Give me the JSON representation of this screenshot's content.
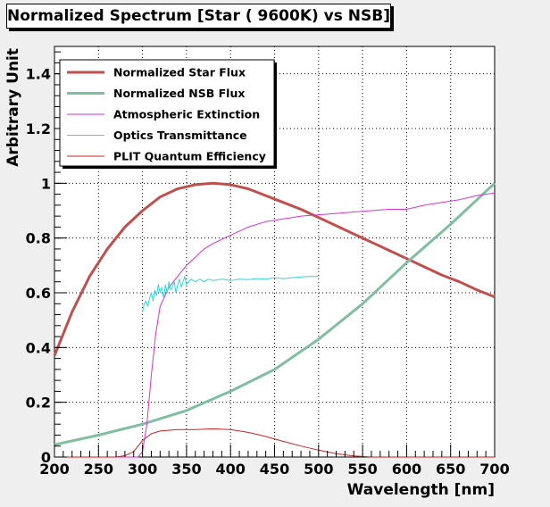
{
  "chart_data": {
    "type": "line",
    "title": "Normalized Spectrum [Star ( 9600K) vs NSB]",
    "xlabel": "Wavelength [nm]",
    "ylabel": "Arbitrary Unit",
    "xlim": [
      200,
      700
    ],
    "ylim": [
      0,
      1.5
    ],
    "x_ticks": [
      "200",
      "250",
      "300",
      "350",
      "400",
      "450",
      "500",
      "550",
      "600",
      "650",
      "700"
    ],
    "y_ticks": [
      "0",
      "0.2",
      "0.4",
      "0.6",
      "0.8",
      "1",
      "1.2",
      "1.4"
    ],
    "grid": true,
    "legend_position": "top-left",
    "series": [
      {
        "name": "Normalized Star Flux",
        "color": "#c0504d",
        "width": "thick",
        "x": [
          200,
          220,
          240,
          260,
          280,
          300,
          320,
          340,
          360,
          380,
          400,
          420,
          440,
          460,
          480,
          500,
          520,
          540,
          560,
          580,
          600,
          620,
          640,
          660,
          680,
          700
        ],
        "y": [
          0.37,
          0.53,
          0.66,
          0.76,
          0.84,
          0.9,
          0.95,
          0.98,
          0.995,
          1.0,
          0.995,
          0.98,
          0.955,
          0.93,
          0.905,
          0.875,
          0.845,
          0.815,
          0.785,
          0.755,
          0.725,
          0.695,
          0.665,
          0.64,
          0.61,
          0.585
        ]
      },
      {
        "name": "Normalized NSB Flux",
        "color": "#7fbf9f",
        "width": "thick",
        "x": [
          200,
          250,
          300,
          350,
          400,
          450,
          500,
          550,
          600,
          650,
          700
        ],
        "y": [
          0.045,
          0.08,
          0.12,
          0.17,
          0.24,
          0.32,
          0.43,
          0.56,
          0.71,
          0.85,
          1.0
        ]
      },
      {
        "name": "Atmospheric Extinction",
        "color": "#d633d6",
        "width": "thin",
        "x": [
          200,
          295,
          300,
          305,
          310,
          315,
          320,
          330,
          340,
          350,
          360,
          370,
          380,
          400,
          420,
          440,
          460,
          480,
          500,
          520,
          540,
          560,
          580,
          600,
          620,
          640,
          660,
          680,
          700
        ],
        "y": [
          0,
          0,
          0.02,
          0.12,
          0.3,
          0.45,
          0.55,
          0.62,
          0.66,
          0.7,
          0.73,
          0.76,
          0.78,
          0.81,
          0.84,
          0.86,
          0.87,
          0.88,
          0.885,
          0.89,
          0.895,
          0.9,
          0.905,
          0.905,
          0.92,
          0.93,
          0.94,
          0.955,
          0.965
        ]
      },
      {
        "name": "Optics Transmittance",
        "color": "#33d6d6",
        "width": "thin",
        "x": [
          300,
          302,
          304,
          306,
          308,
          310,
          312,
          314,
          316,
          318,
          320,
          322,
          324,
          326,
          328,
          330,
          332,
          334,
          336,
          338,
          340,
          342,
          344,
          346,
          348,
          350,
          355,
          360,
          365,
          370,
          375,
          380,
          390,
          400,
          410,
          420,
          430,
          440,
          450,
          460,
          470,
          480,
          490,
          500
        ],
        "y": [
          0.53,
          0.56,
          0.57,
          0.55,
          0.58,
          0.6,
          0.57,
          0.61,
          0.59,
          0.63,
          0.6,
          0.62,
          0.58,
          0.63,
          0.6,
          0.64,
          0.61,
          0.62,
          0.64,
          0.6,
          0.63,
          0.65,
          0.62,
          0.64,
          0.66,
          0.63,
          0.65,
          0.64,
          0.65,
          0.64,
          0.65,
          0.645,
          0.65,
          0.645,
          0.65,
          0.648,
          0.652,
          0.65,
          0.655,
          0.652,
          0.655,
          0.658,
          0.66,
          0.66
        ]
      },
      {
        "name": "PLIT Quantum Efficiency",
        "color": "#cc2222",
        "width": "thin",
        "x": [
          200,
          270,
          280,
          290,
          300,
          310,
          320,
          340,
          360,
          380,
          400,
          420,
          440,
          460,
          480,
          500,
          520,
          540,
          560,
          600,
          650,
          700
        ],
        "y": [
          0,
          0,
          0.005,
          0.02,
          0.06,
          0.085,
          0.095,
          0.1,
          0.1,
          0.103,
          0.1,
          0.09,
          0.075,
          0.057,
          0.04,
          0.025,
          0.012,
          0.004,
          0,
          0,
          0,
          0
        ]
      }
    ]
  }
}
